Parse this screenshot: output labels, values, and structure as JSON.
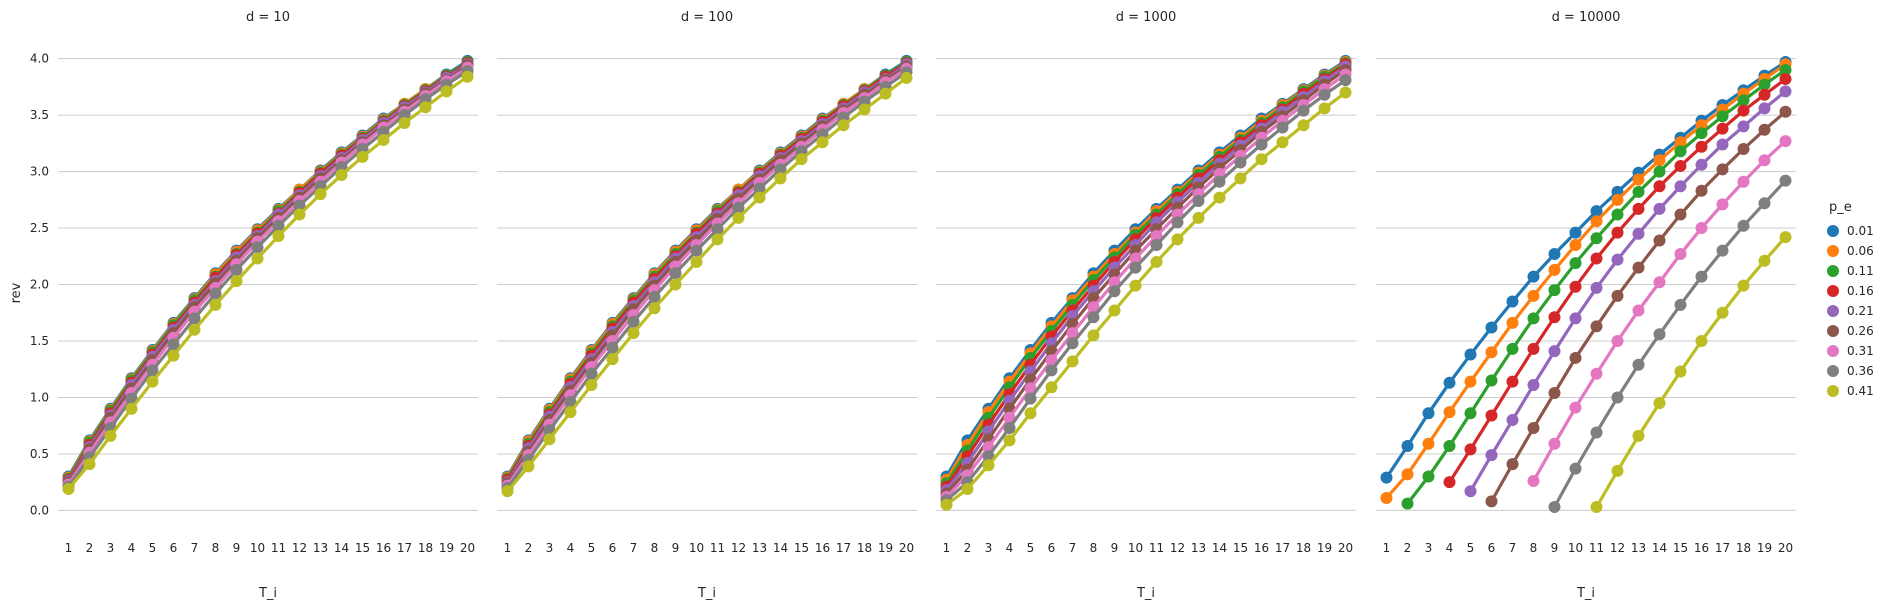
{
  "chart_data": {
    "type": "line",
    "ylabel": "rev",
    "xlabel": "T_i",
    "x": [
      1,
      2,
      3,
      4,
      5,
      6,
      7,
      8,
      9,
      10,
      11,
      12,
      13,
      14,
      15,
      16,
      17,
      18,
      19,
      20
    ],
    "ylim": [
      -0.2,
      4.05
    ],
    "yticks": [
      "0.0",
      "0.5",
      "1.0",
      "1.5",
      "2.0",
      "2.5",
      "3.0",
      "3.5",
      "4.0"
    ],
    "grid": "horizontal",
    "legend": {
      "title": "p_e",
      "placement": "right",
      "entries": [
        {
          "label": "0.01",
          "color": "#1f77b4"
        },
        {
          "label": "0.06",
          "color": "#ff7f0e"
        },
        {
          "label": "0.11",
          "color": "#2ca02c"
        },
        {
          "label": "0.16",
          "color": "#d62728"
        },
        {
          "label": "0.21",
          "color": "#9467bd"
        },
        {
          "label": "0.26",
          "color": "#8c564b"
        },
        {
          "label": "0.31",
          "color": "#e377c2"
        },
        {
          "label": "0.36",
          "color": "#7f7f7f"
        },
        {
          "label": "0.41",
          "color": "#bcbd22"
        }
      ]
    },
    "panels": [
      {
        "title": "d = 10",
        "series": [
          {
            "values": [
              0.3,
              0.62,
              0.9,
              1.17,
              1.42,
              1.66,
              1.88,
              2.1,
              2.3,
              2.49,
              2.67,
              2.84,
              3.01,
              3.17,
              3.32,
              3.47,
              3.6,
              3.73,
              3.86,
              3.98
            ]
          },
          {
            "values": [
              0.29,
              0.61,
              0.89,
              1.16,
              1.41,
              1.65,
              1.87,
              2.09,
              2.29,
              2.48,
              2.66,
              2.84,
              3.0,
              3.16,
              3.31,
              3.46,
              3.6,
              3.73,
              3.85,
              3.97
            ]
          },
          {
            "values": [
              0.28,
              0.6,
              0.88,
              1.15,
              1.4,
              1.64,
              1.86,
              2.07,
              2.27,
              2.46,
              2.65,
              2.82,
              2.99,
              3.15,
              3.3,
              3.45,
              3.59,
              3.72,
              3.85,
              3.97
            ]
          },
          {
            "values": [
              0.27,
              0.58,
              0.86,
              1.13,
              1.38,
              1.62,
              1.84,
              2.06,
              2.26,
              2.45,
              2.63,
              2.81,
              2.98,
              3.14,
              3.29,
              3.44,
              3.58,
              3.71,
              3.84,
              3.96
            ]
          },
          {
            "values": [
              0.26,
              0.56,
              0.84,
              1.11,
              1.36,
              1.6,
              1.82,
              2.03,
              2.24,
              2.43,
              2.62,
              2.79,
              2.96,
              3.12,
              3.28,
              3.43,
              3.57,
              3.7,
              3.83,
              3.95
            ]
          },
          {
            "values": [
              0.25,
              0.54,
              0.82,
              1.08,
              1.33,
              1.57,
              1.8,
              2.01,
              2.21,
              2.41,
              2.59,
              2.77,
              2.94,
              3.1,
              3.26,
              3.41,
              3.55,
              3.69,
              3.81,
              3.94
            ]
          },
          {
            "values": [
              0.23,
              0.51,
              0.78,
              1.04,
              1.29,
              1.53,
              1.76,
              1.97,
              2.18,
              2.38,
              2.56,
              2.74,
              2.91,
              3.08,
              3.24,
              3.39,
              3.53,
              3.67,
              3.8,
              3.92
            ]
          },
          {
            "values": [
              0.21,
              0.47,
              0.73,
              0.99,
              1.24,
              1.47,
              1.7,
              1.92,
              2.13,
              2.33,
              2.52,
              2.7,
              2.87,
              3.04,
              3.2,
              3.35,
              3.5,
              3.64,
              3.77,
              3.89
            ]
          },
          {
            "values": [
              0.19,
              0.41,
              0.66,
              0.9,
              1.14,
              1.37,
              1.6,
              1.82,
              2.03,
              2.23,
              2.43,
              2.62,
              2.8,
              2.97,
              3.13,
              3.28,
              3.43,
              3.57,
              3.71,
              3.84
            ]
          }
        ]
      },
      {
        "title": "d = 100",
        "series": [
          {
            "values": [
              0.3,
              0.62,
              0.9,
              1.17,
              1.42,
              1.66,
              1.88,
              2.1,
              2.3,
              2.49,
              2.67,
              2.84,
              3.01,
              3.17,
              3.32,
              3.47,
              3.6,
              3.73,
              3.86,
              3.98
            ]
          },
          {
            "values": [
              0.29,
              0.61,
              0.89,
              1.16,
              1.41,
              1.65,
              1.87,
              2.09,
              2.29,
              2.48,
              2.66,
              2.84,
              3.0,
              3.16,
              3.31,
              3.46,
              3.6,
              3.73,
              3.85,
              3.97
            ]
          },
          {
            "values": [
              0.28,
              0.59,
              0.87,
              1.14,
              1.39,
              1.63,
              1.86,
              2.07,
              2.27,
              2.46,
              2.65,
              2.82,
              2.99,
              3.15,
              3.3,
              3.45,
              3.59,
              3.72,
              3.85,
              3.97
            ]
          },
          {
            "values": [
              0.27,
              0.57,
              0.85,
              1.12,
              1.37,
              1.61,
              1.84,
              2.05,
              2.25,
              2.45,
              2.63,
              2.81,
              2.98,
              3.14,
              3.29,
              3.44,
              3.58,
              3.71,
              3.84,
              3.96
            ]
          },
          {
            "values": [
              0.25,
              0.55,
              0.83,
              1.09,
              1.34,
              1.58,
              1.81,
              2.02,
              2.23,
              2.42,
              2.61,
              2.79,
              2.96,
              3.12,
              3.27,
              3.42,
              3.56,
              3.7,
              3.82,
              3.95
            ]
          },
          {
            "values": [
              0.24,
              0.52,
              0.8,
              1.06,
              1.31,
              1.55,
              1.78,
              1.99,
              2.2,
              2.39,
              2.58,
              2.76,
              2.93,
              3.1,
              3.25,
              3.4,
              3.54,
              3.68,
              3.81,
              3.93
            ]
          },
          {
            "values": [
              0.22,
              0.49,
              0.76,
              1.02,
              1.27,
              1.5,
              1.73,
              1.95,
              2.16,
              2.35,
              2.54,
              2.72,
              2.9,
              3.06,
              3.22,
              3.37,
              3.52,
              3.65,
              3.79,
              3.91
            ]
          },
          {
            "values": [
              0.2,
              0.45,
              0.71,
              0.96,
              1.21,
              1.44,
              1.67,
              1.89,
              2.1,
              2.3,
              2.49,
              2.68,
              2.85,
              3.02,
              3.18,
              3.33,
              3.48,
              3.62,
              3.75,
              3.88
            ]
          },
          {
            "values": [
              0.17,
              0.39,
              0.63,
              0.87,
              1.11,
              1.34,
              1.57,
              1.79,
              2.0,
              2.2,
              2.4,
              2.59,
              2.77,
              2.94,
              3.11,
              3.26,
              3.41,
              3.55,
              3.69,
              3.83
            ]
          }
        ]
      },
      {
        "title": "d = 1000",
        "series": [
          {
            "values": [
              0.3,
              0.62,
              0.9,
              1.17,
              1.42,
              1.66,
              1.88,
              2.1,
              2.3,
              2.49,
              2.67,
              2.84,
              3.01,
              3.17,
              3.32,
              3.47,
              3.6,
              3.73,
              3.86,
              3.98
            ]
          },
          {
            "values": [
              0.27,
              0.58,
              0.87,
              1.14,
              1.39,
              1.63,
              1.86,
              2.07,
              2.27,
              2.46,
              2.65,
              2.82,
              2.99,
              3.15,
              3.3,
              3.45,
              3.59,
              3.72,
              3.85,
              3.97
            ]
          },
          {
            "values": [
              0.24,
              0.53,
              0.82,
              1.09,
              1.35,
              1.59,
              1.82,
              2.04,
              2.24,
              2.44,
              2.62,
              2.8,
              2.97,
              3.13,
              3.28,
              3.43,
              3.57,
              3.71,
              3.84,
              3.96
            ]
          },
          {
            "values": [
              0.21,
              0.48,
              0.76,
              1.03,
              1.29,
              1.54,
              1.77,
              1.99,
              2.2,
              2.4,
              2.59,
              2.77,
              2.94,
              3.1,
              3.26,
              3.41,
              3.55,
              3.69,
              3.82,
              3.95
            ]
          },
          {
            "values": [
              0.18,
              0.42,
              0.7,
              0.97,
              1.23,
              1.48,
              1.72,
              1.94,
              2.15,
              2.35,
              2.55,
              2.73,
              2.9,
              3.07,
              3.23,
              3.38,
              3.53,
              3.66,
              3.8,
              3.93
            ]
          },
          {
            "values": [
              0.15,
              0.36,
              0.63,
              0.9,
              1.16,
              1.41,
              1.65,
              1.88,
              2.09,
              2.3,
              2.49,
              2.68,
              2.86,
              3.03,
              3.19,
              3.35,
              3.49,
              3.63,
              3.77,
              3.9
            ]
          },
          {
            "values": [
              0.12,
              0.31,
              0.56,
              0.82,
              1.08,
              1.33,
              1.57,
              1.8,
              2.02,
              2.23,
              2.43,
              2.62,
              2.8,
              2.98,
              3.14,
              3.3,
              3.45,
              3.59,
              3.73,
              3.86
            ]
          },
          {
            "values": [
              0.09,
              0.25,
              0.48,
              0.73,
              0.99,
              1.24,
              1.48,
              1.71,
              1.94,
              2.15,
              2.35,
              2.55,
              2.74,
              2.91,
              3.08,
              3.24,
              3.39,
              3.54,
              3.68,
              3.81
            ]
          },
          {
            "values": [
              0.05,
              0.19,
              0.4,
              0.62,
              0.86,
              1.09,
              1.32,
              1.55,
              1.77,
              1.99,
              2.2,
              2.4,
              2.59,
              2.77,
              2.94,
              3.11,
              3.26,
              3.41,
              3.56,
              3.7
            ]
          }
        ]
      },
      {
        "title": "d = 10000",
        "series": [
          {
            "values": [
              0.29,
              0.57,
              0.86,
              1.13,
              1.38,
              1.62,
              1.85,
              2.07,
              2.27,
              2.46,
              2.65,
              2.82,
              2.99,
              3.15,
              3.3,
              3.45,
              3.59,
              3.72,
              3.85,
              3.97
            ]
          },
          {
            "values": [
              0.11,
              0.32,
              0.59,
              0.87,
              1.14,
              1.4,
              1.66,
              1.9,
              2.13,
              2.35,
              2.56,
              2.75,
              2.93,
              3.1,
              3.26,
              3.41,
              3.55,
              3.69,
              3.82,
              3.95
            ]
          },
          {
            "values": [
              null,
              0.06,
              0.3,
              0.57,
              0.86,
              1.15,
              1.43,
              1.7,
              1.95,
              2.19,
              2.41,
              2.62,
              2.82,
              3.0,
              3.18,
              3.34,
              3.49,
              3.63,
              3.77,
              3.9
            ]
          },
          {
            "values": [
              null,
              null,
              null,
              0.25,
              0.54,
              0.84,
              1.14,
              1.43,
              1.71,
              1.98,
              2.23,
              2.46,
              2.67,
              2.87,
              3.05,
              3.22,
              3.38,
              3.54,
              3.68,
              3.82
            ]
          },
          {
            "values": [
              null,
              null,
              null,
              null,
              0.17,
              0.49,
              0.8,
              1.11,
              1.41,
              1.7,
              1.97,
              2.22,
              2.45,
              2.67,
              2.87,
              3.06,
              3.24,
              3.4,
              3.56,
              3.71
            ]
          },
          {
            "values": [
              null,
              null,
              null,
              null,
              null,
              0.08,
              0.41,
              0.73,
              1.04,
              1.35,
              1.63,
              1.9,
              2.15,
              2.39,
              2.62,
              2.83,
              3.02,
              3.2,
              3.37,
              3.53
            ]
          },
          {
            "values": [
              null,
              null,
              null,
              null,
              null,
              null,
              null,
              0.26,
              0.59,
              0.91,
              1.21,
              1.5,
              1.77,
              2.02,
              2.27,
              2.5,
              2.71,
              2.91,
              3.1,
              3.27
            ]
          },
          {
            "values": [
              null,
              null,
              null,
              null,
              null,
              null,
              null,
              null,
              0.03,
              0.37,
              0.69,
              1.0,
              1.29,
              1.56,
              1.82,
              2.07,
              2.3,
              2.52,
              2.72,
              2.92
            ]
          },
          {
            "values": [
              null,
              null,
              null,
              null,
              null,
              null,
              null,
              null,
              null,
              null,
              0.03,
              0.35,
              0.66,
              0.95,
              1.23,
              1.5,
              1.75,
              1.99,
              2.21,
              2.42
            ]
          }
        ]
      }
    ]
  }
}
